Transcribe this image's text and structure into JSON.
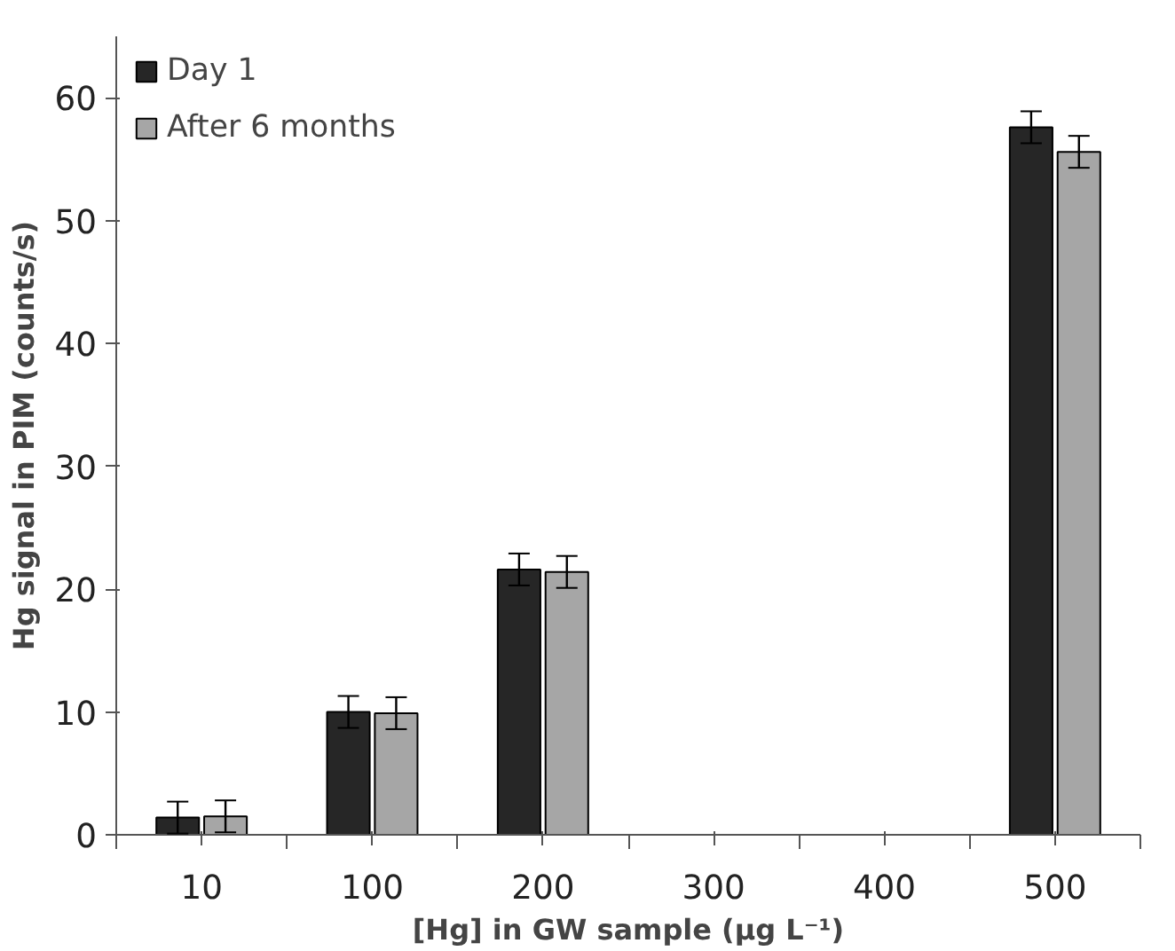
{
  "chart_data": {
    "type": "bar",
    "xlabel": "[Hg] in GW sample (µg L⁻¹)",
    "ylabel": "Hg signal in PIM (counts/s)",
    "categories": [
      "10",
      "100",
      "200",
      "300",
      "400",
      "500"
    ],
    "series": [
      {
        "name": "Day 1",
        "color": "#262626",
        "values": [
          1.4,
          10.0,
          21.6,
          null,
          null,
          57.6
        ],
        "errors": [
          1.3,
          1.3,
          1.3,
          null,
          null,
          1.3
        ]
      },
      {
        "name": "After 6 months",
        "color": "#a6a6a6",
        "values": [
          1.5,
          9.9,
          21.4,
          null,
          null,
          55.6
        ],
        "errors": [
          1.3,
          1.3,
          1.3,
          null,
          null,
          1.3
        ]
      }
    ],
    "ylim": [
      0,
      65
    ],
    "yticks": [
      0,
      10,
      20,
      30,
      40,
      50,
      60
    ],
    "grid": false,
    "legend": "top left"
  }
}
